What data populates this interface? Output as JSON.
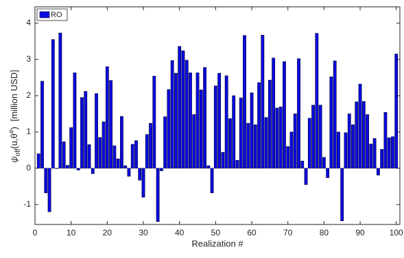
{
  "chart_data": {
    "type": "bar",
    "x_label": "Realization #",
    "y_label": {
      "symbol": "ψ",
      "sub": "off",
      "args": "(u,θ",
      "sup": "#",
      "close": ")",
      "unit": "[million USD]"
    },
    "x": [
      1,
      2,
      3,
      4,
      5,
      6,
      7,
      8,
      9,
      10,
      11,
      12,
      13,
      14,
      15,
      16,
      17,
      18,
      19,
      20,
      21,
      22,
      23,
      24,
      25,
      26,
      27,
      28,
      29,
      30,
      31,
      32,
      33,
      34,
      35,
      36,
      37,
      38,
      39,
      40,
      41,
      42,
      43,
      44,
      45,
      46,
      47,
      48,
      49,
      50,
      51,
      52,
      53,
      54,
      55,
      56,
      57,
      58,
      59,
      60,
      61,
      62,
      63,
      64,
      65,
      66,
      67,
      68,
      69,
      70,
      71,
      72,
      73,
      74,
      75,
      76,
      77,
      78,
      79,
      80,
      81,
      82,
      83,
      84,
      85,
      86,
      87,
      88,
      89,
      90,
      91,
      92,
      93,
      94,
      95,
      96,
      97,
      98,
      99,
      100
    ],
    "series": [
      {
        "name": "RO",
        "color": "#0a0ae0",
        "values": [
          0.4,
          2.4,
          -0.68,
          -1.2,
          3.55,
          0,
          3.73,
          0.73,
          0.08,
          1.12,
          2.63,
          -0.05,
          1.95,
          2.12,
          0.65,
          -0.15,
          2.06,
          0.85,
          1.28,
          2.8,
          2.42,
          0.62,
          0.26,
          1.43,
          0.07,
          -0.22,
          0.66,
          0.76,
          -0.33,
          -0.8,
          0.93,
          1.24,
          2.54,
          -1.47,
          -0.07,
          1.42,
          2.17,
          2.97,
          2.62,
          3.36,
          3.24,
          2.98,
          2.63,
          1.48,
          2.63,
          2.16,
          2.78,
          0.07,
          -0.68,
          2.27,
          2.62,
          0.44,
          2.55,
          1.37,
          2.0,
          0.22,
          1.94,
          3.66,
          1.24,
          2.08,
          1.2,
          2.36,
          3.67,
          1.4,
          2.43,
          3.04,
          1.66,
          1.69,
          2.94,
          0.6,
          1.0,
          1.5,
          3.02,
          0.2,
          -0.45,
          1.38,
          1.74,
          3.72,
          1.74,
          0.3,
          -0.26,
          2.52,
          2.96,
          1.0,
          -1.45,
          0.98,
          1.5,
          1.2,
          1.83,
          2.32,
          1.84,
          1.48,
          0.67,
          0.82,
          -0.19,
          0.52,
          1.54,
          0.84,
          0.87,
          3.15
        ]
      }
    ],
    "xlim": [
      0,
      101
    ],
    "ylim": [
      -1.55,
      4.45
    ],
    "xticks": [
      0,
      10,
      20,
      30,
      40,
      50,
      60,
      70,
      80,
      90,
      100
    ],
    "yticks": [
      -1,
      0,
      1,
      2,
      3,
      4
    ],
    "grid": false,
    "legend": "upper left"
  }
}
